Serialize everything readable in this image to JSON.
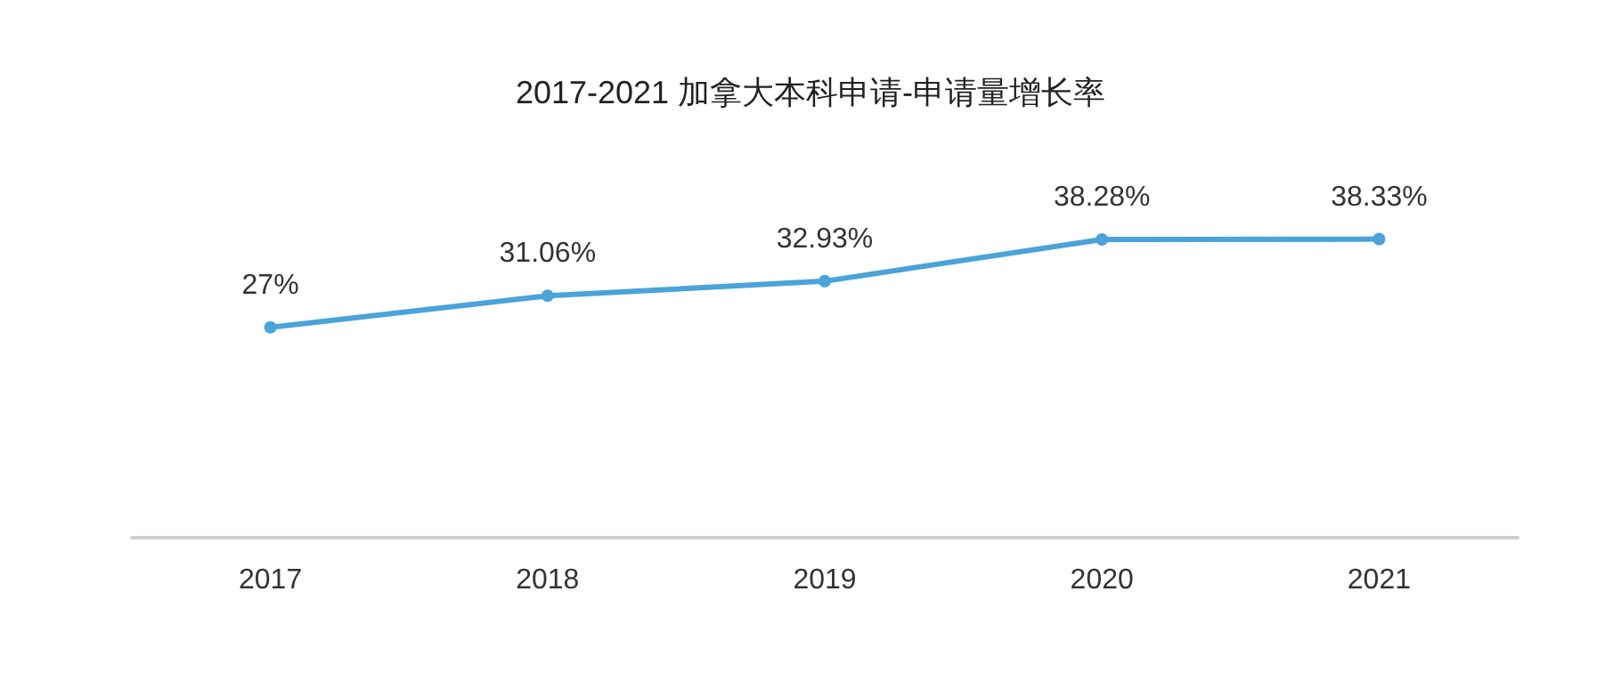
{
  "chart_data": {
    "type": "line",
    "title": "2017-2021 加拿大本科申请-申请量增长率",
    "categories": [
      "2017",
      "2018",
      "2019",
      "2020",
      "2021"
    ],
    "series": [
      {
        "color": "#4aa3d9",
        "values": [
          27,
          31.06,
          32.93,
          38.28,
          38.33
        ],
        "value_labels": [
          "27%",
          "31.06%",
          "32.93%",
          "38.28%",
          "38.33%"
        ]
      }
    ],
    "grid": false,
    "marker": "circle",
    "line_style": "solid"
  }
}
